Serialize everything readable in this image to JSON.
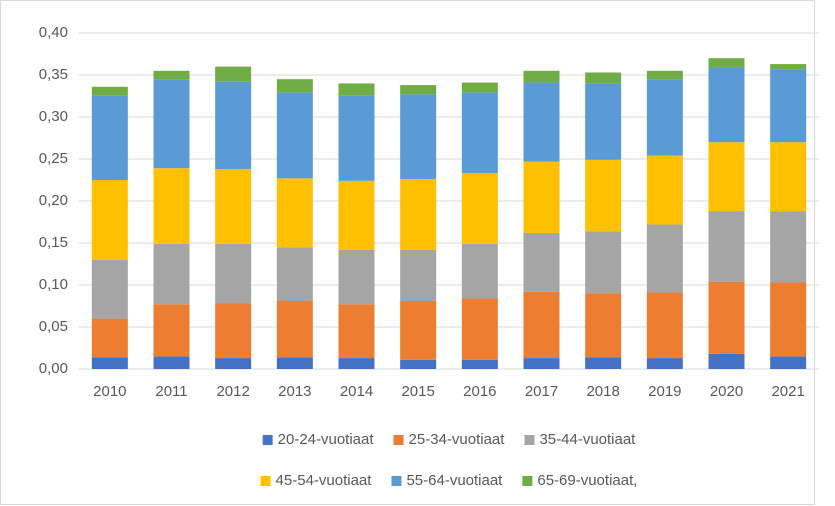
{
  "chart_data": {
    "type": "stacked_bar",
    "categories": [
      "2010",
      "2011",
      "2012",
      "2013",
      "2014",
      "2015",
      "2016",
      "2017",
      "2018",
      "2019",
      "2020",
      "2021"
    ],
    "series": [
      {
        "name": "20-24-vuotiaat",
        "color": "#4472c4",
        "values": [
          0.014,
          0.015,
          0.013,
          0.014,
          0.013,
          0.011,
          0.011,
          0.013,
          0.014,
          0.013,
          0.018,
          0.015
        ]
      },
      {
        "name": "25-34-vuotiaat",
        "color": "#ed7d31",
        "values": [
          0.046,
          0.062,
          0.065,
          0.067,
          0.064,
          0.07,
          0.073,
          0.079,
          0.076,
          0.078,
          0.086,
          0.088
        ]
      },
      {
        "name": "35-44-vuotiaat",
        "color": "#a5a5a5",
        "values": [
          0.07,
          0.072,
          0.071,
          0.064,
          0.065,
          0.061,
          0.065,
          0.07,
          0.074,
          0.081,
          0.084,
          0.085
        ]
      },
      {
        "name": "45-54-vuotiaat",
        "color": "#ffc000",
        "values": [
          0.095,
          0.09,
          0.089,
          0.082,
          0.082,
          0.084,
          0.084,
          0.085,
          0.085,
          0.082,
          0.082,
          0.082
        ]
      },
      {
        "name": "55-64-vuotiaat",
        "color": "#5b9bd5",
        "values": [
          0.101,
          0.106,
          0.104,
          0.102,
          0.102,
          0.101,
          0.096,
          0.094,
          0.091,
          0.091,
          0.089,
          0.087
        ]
      },
      {
        "name": "65-69-vuotiaat,",
        "color": "#70ad47",
        "values": [
          0.01,
          0.01,
          0.018,
          0.016,
          0.014,
          0.011,
          0.012,
          0.014,
          0.013,
          0.01,
          0.011,
          0.006
        ]
      }
    ],
    "ylim": [
      0,
      0.4
    ],
    "yticks": [
      {
        "value": 0,
        "label": "0,00"
      },
      {
        "value": 0.05,
        "label": "0,05"
      },
      {
        "value": 0.1,
        "label": "0,10"
      },
      {
        "value": 0.15,
        "label": "0,15"
      },
      {
        "value": 0.2,
        "label": "0,20"
      },
      {
        "value": 0.25,
        "label": "0,25"
      },
      {
        "value": 0.3,
        "label": "0,30"
      },
      {
        "value": 0.35,
        "label": "0,35"
      },
      {
        "value": 0.4,
        "label": "0,40"
      }
    ],
    "grid": true,
    "legend": "bottom"
  }
}
